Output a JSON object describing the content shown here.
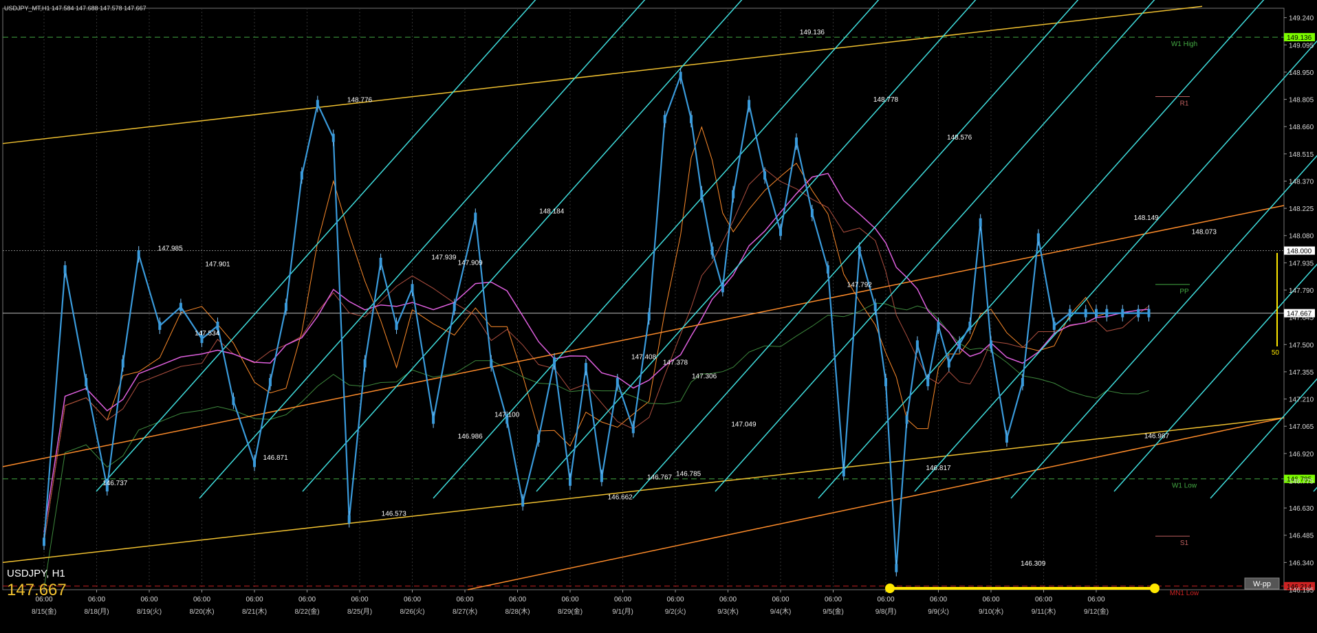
{
  "window": {
    "header_text": "USDJPY_MT,H1  147.584 147.688 147.578 147.667",
    "symbol_tf": "USDJPY, H1",
    "last_price": "147.667",
    "wpp_button": "W-pp",
    "bar_count_label": "50"
  },
  "colors": {
    "bg": "#000000",
    "candle": "#3a9bdc",
    "channel": "#40e0e0",
    "trend_yellow": "#f2c230",
    "trend_orange": "#ff8c2a",
    "ma_magenta": "#e060e0",
    "ma_green": "#3e8a3e",
    "level_green": "#44aa44",
    "mn1": "#cc2222",
    "grid": "#333333",
    "price_tag_green": "#7cfc00"
  },
  "chart_data": {
    "type": "line",
    "title": "",
    "xlabel": "",
    "ylabel": "",
    "ylim": [
      146.195,
      149.29
    ],
    "x_tick_time": "06:00",
    "x_dates": [
      "8/15(金)",
      "8/18(月)",
      "8/19(火)",
      "8/20(水)",
      "8/21(木)",
      "8/22(金)",
      "8/25(月)",
      "8/26(火)",
      "8/27(水)",
      "8/28(木)",
      "8/29(金)",
      "9/1(月)",
      "9/2(火)",
      "9/3(水)",
      "9/4(木)",
      "9/5(金)",
      "9/8(月)",
      "9/9(火)",
      "9/10(水)",
      "9/11(木)",
      "9/12(金)"
    ],
    "y_ticks": [
      "149.240",
      "149.095",
      "148.950",
      "148.805",
      "148.660",
      "148.515",
      "148.370",
      "148.225",
      "148.080",
      "147.935",
      "147.790",
      "147.645",
      "147.500",
      "147.355",
      "147.210",
      "147.065",
      "146.920",
      "146.775",
      "146.630",
      "146.485",
      "146.340",
      "146.195"
    ],
    "price_series": {
      "name": "",
      "x": [
        0,
        0.4,
        0.8,
        1.2,
        1.5,
        1.8,
        2.2,
        2.6,
        3.0,
        3.3,
        3.6,
        4.0,
        4.3,
        4.6,
        4.9,
        5.2,
        5.5,
        5.8,
        6.1,
        6.4,
        6.7,
        7.0,
        7.4,
        7.8,
        8.2,
        8.5,
        8.8,
        9.1,
        9.4,
        9.7,
        10.0,
        10.3,
        10.6,
        10.9,
        11.2,
        11.5,
        11.8,
        12.1,
        12.3,
        12.5,
        12.7,
        12.9,
        13.1,
        13.4,
        13.7,
        14.0,
        14.3,
        14.6,
        14.9,
        15.2,
        15.5,
        15.8,
        16.0,
        16.2,
        16.4,
        16.6,
        16.8,
        17.0,
        17.2,
        17.4,
        17.6,
        17.8,
        18.0,
        18.3,
        18.6,
        18.9,
        19.2,
        19.5,
        19.8,
        20.0,
        20.2,
        20.5,
        20.8,
        21.0
      ],
      "y": [
        146.45,
        147.9,
        147.3,
        146.74,
        147.4,
        147.98,
        147.6,
        147.7,
        147.53,
        147.6,
        147.2,
        146.87,
        147.3,
        147.7,
        148.4,
        148.78,
        148.6,
        146.57,
        147.4,
        147.94,
        147.6,
        147.8,
        147.1,
        147.7,
        148.18,
        147.4,
        147.1,
        146.66,
        147.0,
        147.41,
        146.77,
        147.38,
        146.79,
        147.3,
        147.05,
        147.65,
        148.7,
        148.93,
        148.7,
        148.3,
        148.0,
        147.8,
        148.3,
        148.78,
        148.4,
        148.1,
        148.58,
        148.2,
        147.9,
        146.82,
        148.0,
        147.7,
        147.3,
        146.31,
        147.1,
        147.5,
        147.3,
        147.6,
        147.4,
        147.5,
        147.6,
        148.15,
        147.5,
        147.0,
        147.3,
        148.07,
        147.6,
        147.667,
        147.667,
        147.667,
        147.667,
        147.667,
        147.667,
        147.667
      ]
    },
    "annotations": [
      {
        "x": 2.4,
        "y": 147.985,
        "text": "147.985"
      },
      {
        "x": 3.3,
        "y": 147.901,
        "text": "147.901"
      },
      {
        "x": 3.1,
        "y": 147.534,
        "text": "147.534"
      },
      {
        "x": 1.35,
        "y": 146.737,
        "text": "146.737"
      },
      {
        "x": 4.4,
        "y": 146.871,
        "text": "146.871"
      },
      {
        "x": 6.0,
        "y": 148.776,
        "text": "148.776"
      },
      {
        "x": 6.65,
        "y": 146.573,
        "text": "146.573"
      },
      {
        "x": 7.6,
        "y": 147.939,
        "text": "147.939"
      },
      {
        "x": 8.1,
        "y": 147.909,
        "text": "147.909"
      },
      {
        "x": 8.1,
        "y": 146.986,
        "text": "146.986"
      },
      {
        "x": 8.8,
        "y": 147.1,
        "text": "147.100"
      },
      {
        "x": 9.65,
        "y": 148.184,
        "text": "148.184"
      },
      {
        "x": 11.4,
        "y": 147.408,
        "text": "147.408"
      },
      {
        "x": 12.0,
        "y": 147.378,
        "text": "147.378"
      },
      {
        "x": 12.55,
        "y": 147.306,
        "text": "147.306"
      },
      {
        "x": 10.95,
        "y": 146.662,
        "text": "146.662"
      },
      {
        "x": 11.7,
        "y": 146.767,
        "text": "146.767"
      },
      {
        "x": 12.25,
        "y": 146.785,
        "text": "146.785"
      },
      {
        "x": 13.3,
        "y": 147.049,
        "text": "147.049"
      },
      {
        "x": 14.6,
        "y": 149.136,
        "text": "149.136"
      },
      {
        "x": 15.5,
        "y": 147.792,
        "text": "147.792"
      },
      {
        "x": 16.0,
        "y": 148.778,
        "text": "148.778"
      },
      {
        "x": 17.4,
        "y": 148.576,
        "text": "148.576"
      },
      {
        "x": 17.0,
        "y": 146.817,
        "text": "146.817"
      },
      {
        "x": 18.8,
        "y": 146.309,
        "text": "146.309"
      },
      {
        "x": 20.95,
        "y": 148.149,
        "text": "148.149"
      },
      {
        "x": 22.05,
        "y": 148.073,
        "text": "148.073"
      },
      {
        "x": 21.15,
        "y": 146.987,
        "text": "146.987"
      }
    ],
    "levels": [
      {
        "name": "W1 High",
        "value": 149.136,
        "tag": "149.136",
        "color": "#44aa44"
      },
      {
        "name": "R1",
        "value": 148.82,
        "tag": "",
        "color": "#c06060"
      },
      {
        "name": "PP",
        "value": 147.82,
        "tag": "",
        "color": "#44aa44"
      },
      {
        "name": "W1 Low",
        "value": 146.785,
        "tag": "146.785",
        "color": "#44aa44"
      },
      {
        "name": "S1",
        "value": 146.48,
        "tag": "",
        "color": "#c06060"
      },
      {
        "name": "MN1 Low",
        "value": 146.214,
        "tag": "146.214",
        "color": "#cc2222"
      }
    ],
    "extra_price_tags": [
      "148.000",
      "147.667"
    ],
    "grid": true
  }
}
